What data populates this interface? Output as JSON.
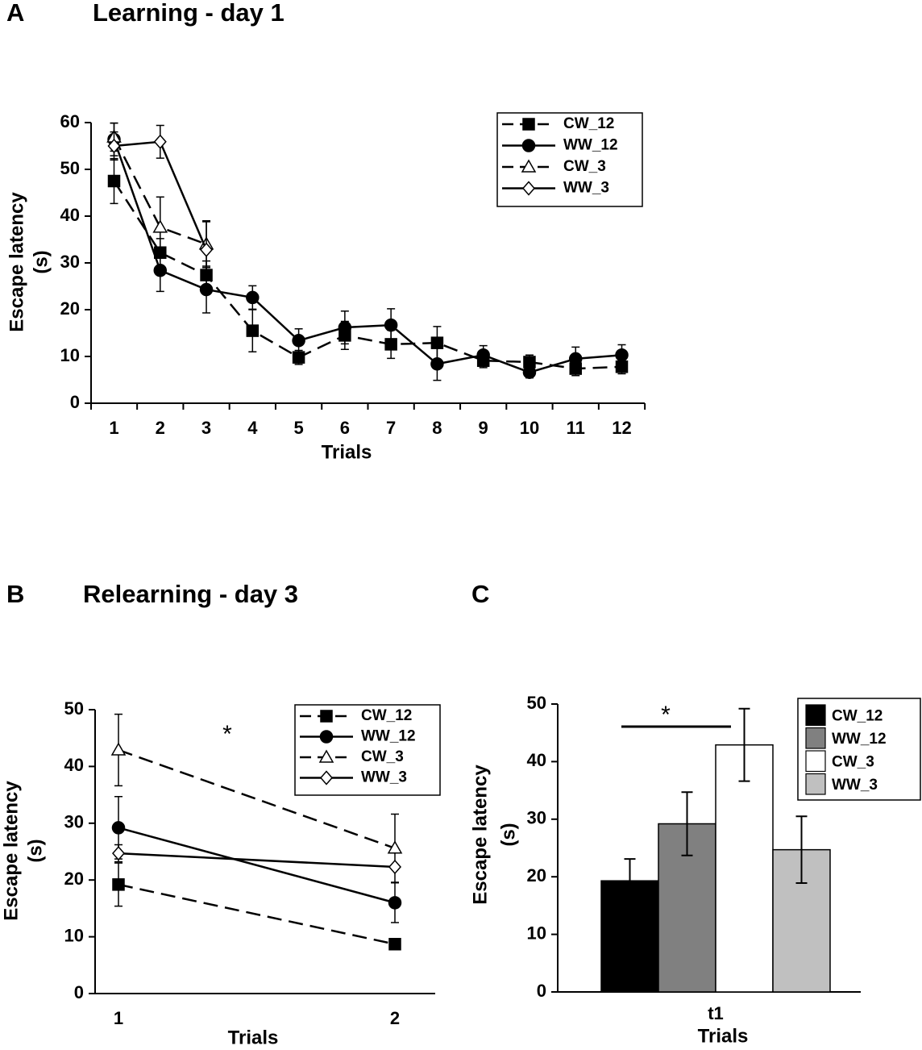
{
  "chart_data": [
    {
      "type": "line",
      "label": "A",
      "title": "Learning -  day 1",
      "x_label": "Trials",
      "y_label": [
        "Escape latency",
        "(s)"
      ],
      "categories": [
        "1",
        "2",
        "3",
        "4",
        "5",
        "6",
        "7",
        "8",
        "9",
        "10",
        "11",
        "12"
      ],
      "ylim": [
        0,
        60
      ],
      "yticks": [
        0,
        10,
        20,
        30,
        40,
        50,
        60
      ],
      "series": [
        {
          "name": "CW_12",
          "color": "#000000",
          "marker": "square",
          "marker_fill": "#000000",
          "dashed": true,
          "values": [
            47.5,
            32.2,
            27.4,
            15.5,
            9.8,
            14.5,
            12.6,
            12.9,
            9.1,
            8.8,
            7.4,
            7.8
          ],
          "errors": [
            4.8,
            3,
            3,
            4.5,
            1.5,
            3,
            3,
            3.5,
            1.5,
            1.5,
            1.5,
            1.5
          ]
        },
        {
          "name": "WW_12",
          "color": "#000000",
          "marker": "circle",
          "marker_fill": "#000000",
          "dashed": false,
          "values": [
            56.4,
            28.4,
            24.3,
            22.6,
            13.4,
            16.2,
            16.7,
            8.4,
            10.3,
            6.6,
            9.5,
            10.3
          ],
          "errors": [
            3.5,
            4.5,
            5,
            2.5,
            2.5,
            3.5,
            3.5,
            3.5,
            2,
            1.2,
            2.5,
            2.2
          ]
        },
        {
          "name": "CW_3",
          "color": "#000000",
          "marker": "triangle",
          "marker_fill": "#ffffff",
          "dashed": true,
          "values": [
            56.9,
            37.6,
            34,
            null,
            null,
            null,
            null,
            null,
            null,
            null,
            null,
            null
          ],
          "errors": [
            3,
            6.5,
            5,
            null,
            null,
            null,
            null,
            null,
            null,
            null,
            null,
            null
          ]
        },
        {
          "name": "WW_3",
          "color": "#000000",
          "marker": "diamond",
          "marker_fill": "#ffffff",
          "dashed": false,
          "values": [
            55,
            55.9,
            32.8,
            null,
            null,
            null,
            null,
            null,
            null,
            null,
            null,
            null
          ],
          "errors": [
            3,
            3.5,
            6,
            null,
            null,
            null,
            null,
            null,
            null,
            null,
            null,
            null
          ]
        }
      ]
    },
    {
      "type": "line",
      "label": "B",
      "title": "Relearning -  day 3",
      "x_label": "Trials",
      "y_label": [
        "Escape latency",
        "(s)"
      ],
      "annotation": "*",
      "categories": [
        "1",
        "2"
      ],
      "ylim": [
        0,
        50
      ],
      "yticks": [
        0,
        10,
        20,
        30,
        40,
        50
      ],
      "series": [
        {
          "name": "CW_12",
          "color": "#000000",
          "marker": "square",
          "marker_fill": "#000000",
          "dashed": true,
          "values": [
            19.2,
            8.7
          ],
          "errors": [
            3.8,
            1
          ]
        },
        {
          "name": "WW_12",
          "color": "#000000",
          "marker": "circle",
          "marker_fill": "#000000",
          "dashed": false,
          "values": [
            29.2,
            16
          ],
          "errors": [
            5.5,
            3.5
          ]
        },
        {
          "name": "CW_3",
          "color": "#000000",
          "marker": "triangle",
          "marker_fill": "#ffffff",
          "dashed": true,
          "values": [
            42.9,
            25.6
          ],
          "errors": [
            6.3,
            6
          ]
        },
        {
          "name": "WW_3",
          "color": "#000000",
          "marker": "diamond",
          "marker_fill": "#ffffff",
          "dashed": false,
          "values": [
            24.7,
            22.3
          ],
          "errors": [
            1.5,
            0.4
          ]
        }
      ]
    },
    {
      "type": "bar",
      "label": "C",
      "x_label": "Trials",
      "y_label": [
        "Escape latency",
        "(s)"
      ],
      "annotation": "*",
      "categories": [
        "t1"
      ],
      "ylim": [
        0,
        50
      ],
      "yticks": [
        0,
        10,
        20,
        30,
        40,
        50
      ],
      "series": [
        {
          "name": "CW_12",
          "color": "#000000",
          "values": [
            19.3
          ],
          "errors": [
            3.8
          ]
        },
        {
          "name": "WW_12",
          "color": "#808080",
          "values": [
            29.2
          ],
          "errors": [
            5.5
          ]
        },
        {
          "name": "CW_3",
          "color": "#ffffff",
          "values": [
            42.9
          ],
          "errors": [
            6.3
          ]
        },
        {
          "name": "WW_3",
          "color": "#c0c0c0",
          "values": [
            24.7
          ],
          "errors": [
            5.8
          ]
        }
      ]
    }
  ]
}
